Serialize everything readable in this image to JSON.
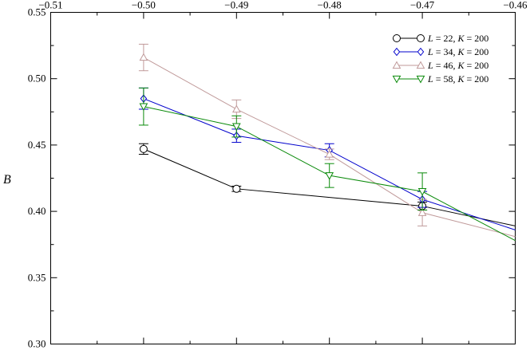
{
  "chart_data": {
    "type": "line",
    "ylabel": "B",
    "xlim": [
      -0.51,
      -0.46
    ],
    "ylim": [
      0.3,
      0.55
    ],
    "x_ticks": [
      -0.51,
      -0.5,
      -0.49,
      -0.48,
      -0.47,
      -0.46
    ],
    "x_tick_labels": [
      "−0.51",
      "−0.50",
      "−0.49",
      "−0.48",
      "−0.47",
      "−0.46"
    ],
    "y_ticks": [
      0.3,
      0.35,
      0.4,
      0.45,
      0.5,
      0.55
    ],
    "y_tick_labels": [
      "0.30",
      "0.35",
      "0.40",
      "0.45",
      "0.50",
      "0.55"
    ],
    "x_axis_position": "top",
    "grid": false,
    "legend_position": "top-right",
    "series": [
      {
        "legend": {
          "L_value": "22",
          "K_value": "200"
        },
        "color": "#000000",
        "marker": "circle",
        "x": [
          -0.5,
          -0.49,
          -0.47,
          -0.46
        ],
        "y": [
          0.447,
          0.417,
          0.404,
          0.389
        ],
        "err": [
          0.004,
          0.002,
          0.003,
          null
        ]
      },
      {
        "legend": {
          "L_value": "34",
          "K_value": "200"
        },
        "color": "#0000cc",
        "marker": "diamond",
        "x": [
          -0.5,
          -0.49,
          -0.48,
          -0.47,
          -0.46
        ],
        "y": [
          0.485,
          0.457,
          0.446,
          0.409,
          0.386
        ],
        "err": [
          0.008,
          0.005,
          0.005,
          0.006,
          null
        ]
      },
      {
        "legend": {
          "L_value": "46",
          "K_value": "200"
        },
        "color": "#c09a9a",
        "marker": "triangle-up",
        "x": [
          -0.5,
          -0.49,
          -0.48,
          -0.47,
          -0.46
        ],
        "y": [
          0.516,
          0.477,
          0.443,
          0.399,
          0.381
        ],
        "err": [
          0.01,
          0.007,
          0.004,
          0.01,
          null
        ]
      },
      {
        "legend": {
          "L_value": "58",
          "K_value": "200"
        },
        "color": "#0a8a0a",
        "marker": "triangle-down",
        "x": [
          -0.5,
          -0.49,
          -0.48,
          -0.47,
          -0.46
        ],
        "y": [
          0.479,
          0.464,
          0.427,
          0.415,
          0.378
        ],
        "err": [
          0.014,
          0.008,
          0.009,
          0.014,
          null
        ]
      }
    ]
  }
}
